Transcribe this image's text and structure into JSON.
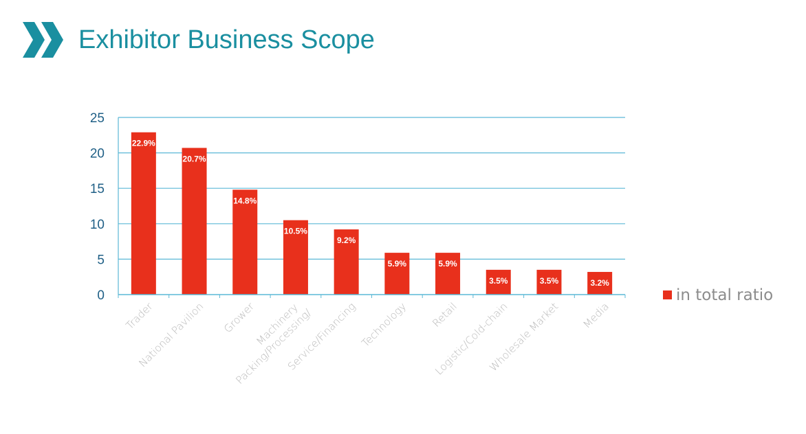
{
  "header": {
    "title": "Exhibitor Business Scope",
    "icon": "double-chevron-right-icon",
    "accent_color": "#1a8fa0"
  },
  "chart_data": {
    "type": "bar",
    "categories": [
      "Trader",
      "National Pavilion",
      "Grower",
      "Machinery Packing/Processing/",
      "Service/Financing",
      "Technology",
      "Retail",
      "Logistic/Cold-chain",
      "Wholesale Market",
      "Media"
    ],
    "series": [
      {
        "name": "in total ratio",
        "values": [
          22.9,
          20.7,
          14.8,
          10.5,
          9.2,
          5.9,
          5.9,
          3.5,
          3.5,
          3.2
        ],
        "data_labels": [
          "22.9%",
          "20.7%",
          "14.8%",
          "10.5%",
          "9.2%",
          "5.9%",
          "5.9%",
          "3.5%",
          "3.5%",
          "3.2%"
        ],
        "color": "#e8301c"
      }
    ],
    "yticks": [
      "0",
      "5",
      "10",
      "15",
      "20",
      "25"
    ],
    "ylim": [
      0,
      25
    ],
    "grid": true,
    "grid_color": "#5bb8d6",
    "legend": "right",
    "xlabel": "",
    "ylabel": ""
  }
}
